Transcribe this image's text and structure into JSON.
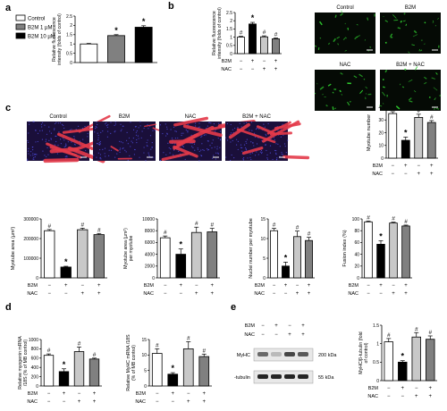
{
  "panel_labels": [
    "a",
    "b",
    "c",
    "d",
    "e"
  ],
  "chart_data": [
    {
      "id": "a",
      "type": "bar",
      "ylabel": "Relative fluorescence intensity (folds of control)",
      "ylim": [
        0,
        2.5
      ],
      "ticks": [
        "0",
        "0.5",
        "1",
        "1.5",
        "2",
        "2.5"
      ],
      "legend": [
        "Control",
        "B2M 1 µM",
        "B2M 10 µM"
      ],
      "fills": [
        "#ffffff",
        "#808080",
        "#000000"
      ],
      "values": [
        1.0,
        1.45,
        1.9
      ],
      "errors": [
        0.03,
        0.05,
        0.08
      ],
      "marks": [
        "",
        "*",
        "*"
      ]
    },
    {
      "id": "b",
      "type": "bar",
      "ylabel": "Relative fluorescence intensity (folds of control)",
      "ylim": [
        0,
        2.5
      ],
      "ticks": [
        "0",
        "0.5",
        "1",
        "1.5",
        "2",
        "2.5"
      ],
      "fills": [
        "#ffffff",
        "#000000",
        "#c8c8c8",
        "#808080"
      ],
      "values": [
        1.0,
        1.8,
        1.02,
        0.9
      ],
      "errors": [
        0.05,
        0.1,
        0.06,
        0.05
      ],
      "marks": [
        "#",
        "*",
        "#",
        "#"
      ],
      "rows": [
        {
          "name": "B2M",
          "signs": [
            "−",
            "+",
            "−",
            "+"
          ]
        },
        {
          "name": "NAC",
          "signs": [
            "−",
            "−",
            "+",
            "+"
          ]
        }
      ]
    },
    {
      "id": "c1",
      "type": "bar",
      "ylabel": "Myotube number",
      "ylim": [
        0,
        40
      ],
      "ticks": [
        "0",
        "10",
        "20",
        "30",
        "40"
      ],
      "fills": [
        "#ffffff",
        "#000000",
        "#c8c8c8",
        "#808080"
      ],
      "values": [
        35,
        14,
        32,
        28
      ],
      "errors": [
        1.5,
        2.5,
        2.5,
        1.5
      ],
      "marks": [
        "#",
        "*",
        "#",
        "#"
      ],
      "rows": [
        {
          "name": "B2M",
          "signs": [
            "−",
            "+",
            "−",
            "+"
          ]
        },
        {
          "name": "NAC",
          "signs": [
            "−",
            "−",
            "+",
            "+"
          ]
        }
      ]
    },
    {
      "id": "c2",
      "type": "bar",
      "ylabel": "Myotube area (µm²)",
      "ylim": [
        0,
        300000
      ],
      "ticks": [
        "0",
        "100000",
        "200000",
        "300000"
      ],
      "fills": [
        "#ffffff",
        "#000000",
        "#c8c8c8",
        "#808080"
      ],
      "values": [
        240000,
        55000,
        245000,
        220000
      ],
      "errors": [
        6000,
        4000,
        8000,
        6000
      ],
      "marks": [
        "#",
        "*",
        "#",
        "#"
      ],
      "rows": [
        {
          "name": "B2M",
          "signs": [
            "−",
            "+",
            "−",
            "+"
          ]
        },
        {
          "name": "NAC",
          "signs": [
            "−",
            "−",
            "+",
            "+"
          ]
        }
      ]
    },
    {
      "id": "c3",
      "type": "bar",
      "ylabel": "Myotube area (µm²) per myotube",
      "ylim": [
        0,
        10000
      ],
      "ticks": [
        "0",
        "2000",
        "4000",
        "6000",
        "8000",
        "10000"
      ],
      "fills": [
        "#ffffff",
        "#000000",
        "#c8c8c8",
        "#808080"
      ],
      "values": [
        6800,
        4000,
        7700,
        7800
      ],
      "errors": [
        300,
        900,
        900,
        600
      ],
      "marks": [
        "#",
        "*",
        "#",
        "#"
      ],
      "rows": [
        {
          "name": "B2M",
          "signs": [
            "−",
            "+",
            "−",
            "+"
          ]
        },
        {
          "name": "NAC",
          "signs": [
            "−",
            "−",
            "+",
            "+"
          ]
        }
      ]
    },
    {
      "id": "c4",
      "type": "bar",
      "ylabel": "Nuclei number per myotube",
      "ylim": [
        0,
        15
      ],
      "ticks": [
        "0",
        "5",
        "10",
        "15"
      ],
      "fills": [
        "#ffffff",
        "#000000",
        "#c8c8c8",
        "#808080"
      ],
      "values": [
        12,
        3,
        10.5,
        9.5
      ],
      "errors": [
        0.6,
        1.0,
        1.4,
        0.8
      ],
      "marks": [
        "#",
        "*",
        "#",
        "#"
      ],
      "rows": [
        {
          "name": "B2M",
          "signs": [
            "−",
            "+",
            "−",
            "+"
          ]
        },
        {
          "name": "NAC",
          "signs": [
            "−",
            "−",
            "+",
            "+"
          ]
        }
      ]
    },
    {
      "id": "c5",
      "type": "bar",
      "ylabel": "Fusion index (%)",
      "ylim": [
        0,
        100
      ],
      "ticks": [
        "0",
        "20",
        "40",
        "60",
        "80",
        "100"
      ],
      "fills": [
        "#ffffff",
        "#000000",
        "#c8c8c8",
        "#808080"
      ],
      "values": [
        95,
        57,
        93,
        88
      ],
      "errors": [
        1.5,
        6,
        1.5,
        1.5
      ],
      "marks": [
        "#",
        "*",
        "#",
        "#"
      ],
      "rows": [
        {
          "name": "B2M",
          "signs": [
            "−",
            "+",
            "−",
            "+"
          ]
        },
        {
          "name": "NAC",
          "signs": [
            "−",
            "−",
            "+",
            "+"
          ]
        }
      ]
    },
    {
      "id": "d1",
      "type": "bar",
      "ylabel": "Relative myogenin mRNA /18S (% of MB control)",
      "ylim": [
        0,
        1000
      ],
      "ticks": [
        "0",
        "200",
        "400",
        "600",
        "800",
        "1000"
      ],
      "fills": [
        "#ffffff",
        "#000000",
        "#c8c8c8",
        "#808080"
      ],
      "values": [
        660,
        310,
        740,
        580
      ],
      "errors": [
        30,
        60,
        100,
        20
      ],
      "marks": [
        "#",
        "*",
        "#",
        "#"
      ],
      "rows": [
        {
          "name": "B2M",
          "signs": [
            "−",
            "+",
            "−",
            "+"
          ]
        },
        {
          "name": "NAC",
          "signs": [
            "−",
            "−",
            "+",
            "+"
          ]
        }
      ]
    },
    {
      "id": "d2",
      "type": "bar",
      "ylabel": "Relative MyHC mRNA /18S (% of MB control)",
      "ylim": [
        0,
        15
      ],
      "ticks": [
        "0",
        "5",
        "10",
        "15"
      ],
      "fills": [
        "#ffffff",
        "#000000",
        "#c8c8c8",
        "#808080"
      ],
      "values": [
        10.5,
        3.8,
        12,
        9.5
      ],
      "errors": [
        1.5,
        0.5,
        2.3,
        0.8
      ],
      "marks": [
        "#",
        "*",
        "#",
        "#"
      ],
      "rows": [
        {
          "name": "B2M",
          "signs": [
            "−",
            "+",
            "−",
            "+"
          ]
        },
        {
          "name": "NAC",
          "signs": [
            "−",
            "−",
            "+",
            "+"
          ]
        }
      ]
    },
    {
      "id": "e",
      "type": "bar",
      "ylabel": "MyHC/β-tubulin (fold of control)",
      "ylim": [
        0,
        1.5
      ],
      "ticks": [
        "0",
        "0.5",
        "1",
        "1.5"
      ],
      "fills": [
        "#ffffff",
        "#000000",
        "#c8c8c8",
        "#808080"
      ],
      "values": [
        1.05,
        0.5,
        1.18,
        1.12
      ],
      "errors": [
        0.09,
        0.04,
        0.12,
        0.09
      ],
      "marks": [
        "#",
        "*",
        "#",
        "#"
      ],
      "rows": [
        {
          "name": "B2M",
          "signs": [
            "−",
            "+",
            "−",
            "+"
          ]
        },
        {
          "name": "NAC",
          "signs": [
            "−",
            "−",
            "+",
            "+"
          ]
        }
      ]
    }
  ],
  "micrographs_b": [
    "Control",
    "B2M",
    "NAC",
    "B2M + NAC"
  ],
  "micrographs_c": [
    "Control",
    "B2M",
    "NAC",
    "B2M + NAC"
  ],
  "blot": {
    "rows": [
      {
        "name": "B2M",
        "signs": [
          "−",
          "+",
          "−",
          "+"
        ]
      },
      {
        "name": "NAC",
        "signs": [
          "−",
          "−",
          "+",
          "+"
        ]
      }
    ],
    "bands": [
      {
        "name": "MyHC",
        "size": "200 kDa",
        "intensity": [
          0.65,
          0.3,
          0.8,
          0.72
        ]
      },
      {
        "name": "-tubulin",
        "size": "55 kDa",
        "intensity": [
          0.95,
          0.95,
          0.95,
          0.95
        ]
      }
    ]
  }
}
